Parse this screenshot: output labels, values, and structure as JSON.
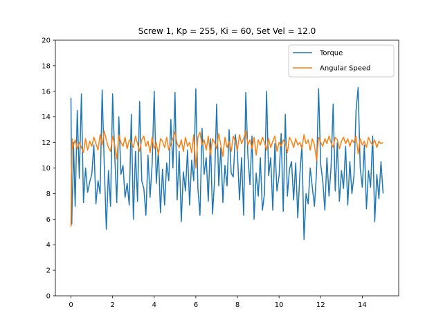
{
  "chart_data": {
    "type": "line",
    "title": "Screw 1, Kp = 255, Ki = 60, Set Vel = 12.0",
    "xlabel": "",
    "ylabel": "",
    "xlim": [
      -0.75,
      15.75
    ],
    "ylim": [
      0,
      20
    ],
    "xticks": [
      0,
      2,
      4,
      6,
      8,
      10,
      12,
      14
    ],
    "yticks": [
      0,
      2,
      4,
      6,
      8,
      10,
      12,
      14,
      16,
      18,
      20
    ],
    "grid": false,
    "legend_position": "upper right",
    "series": [
      {
        "name": "Torque",
        "color": "#1f77b4",
        "x": [
          0,
          0.02,
          0.04,
          0.06,
          0.08,
          0.12,
          0.2,
          0.3,
          0.4,
          0.5,
          0.6,
          0.7,
          0.8,
          0.9,
          1.0,
          1.1,
          1.2,
          1.3,
          1.4,
          1.5,
          1.6,
          1.7,
          1.8,
          1.9,
          2.0,
          2.1,
          2.2,
          2.3,
          2.4,
          2.5,
          2.6,
          2.7,
          2.8,
          2.9,
          3.0,
          3.1,
          3.2,
          3.3,
          3.4,
          3.5,
          3.6,
          3.7,
          3.8,
          3.9,
          4.0,
          4.1,
          4.2,
          4.3,
          4.4,
          4.5,
          4.6,
          4.7,
          4.8,
          4.9,
          5.0,
          5.1,
          5.2,
          5.3,
          5.4,
          5.5,
          5.6,
          5.7,
          5.8,
          5.9,
          6.0,
          6.1,
          6.2,
          6.3,
          6.4,
          6.5,
          6.6,
          6.7,
          6.8,
          6.9,
          7.0,
          7.1,
          7.2,
          7.3,
          7.4,
          7.5,
          7.6,
          7.7,
          7.8,
          7.9,
          8.0,
          8.1,
          8.2,
          8.3,
          8.4,
          8.5,
          8.6,
          8.7,
          8.8,
          8.9,
          9.0,
          9.1,
          9.2,
          9.3,
          9.4,
          9.5,
          9.6,
          9.7,
          9.8,
          9.9,
          10.0,
          10.1,
          10.2,
          10.3,
          10.4,
          10.5,
          10.6,
          10.7,
          10.8,
          10.9,
          11.0,
          11.1,
          11.2,
          11.3,
          11.4,
          11.5,
          11.6,
          11.7,
          11.8,
          11.9,
          12.0,
          12.1,
          12.2,
          12.3,
          12.4,
          12.5,
          12.6,
          12.7,
          12.8,
          12.9,
          13.0,
          13.1,
          13.2,
          13.3,
          13.4,
          13.5,
          13.6,
          13.7,
          13.8,
          13.9,
          14.0,
          14.1,
          14.2,
          14.3,
          14.4,
          14.5,
          14.6,
          14.7,
          14.8,
          14.9,
          15.0
        ],
        "y": [
          15.5,
          11.0,
          5.6,
          7.5,
          8.2,
          12.0,
          7.0,
          14.5,
          9.2,
          15.8,
          7.3,
          10.0,
          8.1,
          8.9,
          9.5,
          11.8,
          7.2,
          9.0,
          8.0,
          16.1,
          10.3,
          5.2,
          9.8,
          7.0,
          15.8,
          11.0,
          7.3,
          14.0,
          9.5,
          10.2,
          7.7,
          8.8,
          7.1,
          14.2,
          6.0,
          11.3,
          7.4,
          15.2,
          9.0,
          8.4,
          6.3,
          11.0,
          7.7,
          10.3,
          16.0,
          8.8,
          11.4,
          6.5,
          9.9,
          7.1,
          10.4,
          9.0,
          13.8,
          10.0,
          15.9,
          7.5,
          11.3,
          5.8,
          9.7,
          8.2,
          11.4,
          7.1,
          10.6,
          9.0,
          16.2,
          8.4,
          6.3,
          13.1,
          9.5,
          10.8,
          7.4,
          12.3,
          6.4,
          9.0,
          15.0,
          8.6,
          11.6,
          7.3,
          10.2,
          8.6,
          13.0,
          9.6,
          9.3,
          12.6,
          11.2,
          7.5,
          10.8,
          6.3,
          15.9,
          11.0,
          8.7,
          12.5,
          6.0,
          9.6,
          7.8,
          10.8,
          6.7,
          8.0,
          16.0,
          9.4,
          10.8,
          6.7,
          11.9,
          8.2,
          9.4,
          12.7,
          6.6,
          14.2,
          7.8,
          9.9,
          10.5,
          7.5,
          10.4,
          6.1,
          9.5,
          11.8,
          4.4,
          8.0,
          7.2,
          10.0,
          8.5,
          7.0,
          9.7,
          16.2,
          10.3,
          9.0,
          6.7,
          10.8,
          7.8,
          10.1,
          15.0,
          8.2,
          12.0,
          7.4,
          9.8,
          8.4,
          11.7,
          7.1,
          10.5,
          8.0,
          9.4,
          14.5,
          16.3,
          10.0,
          8.5,
          11.8,
          6.8,
          9.8,
          8.5,
          12.5,
          5.8,
          9.5,
          7.6,
          10.5,
          8.0
        ]
      },
      {
        "name": "Angular Speed",
        "color": "#ff7f0e",
        "x": [
          0,
          0.02,
          0.04,
          0.06,
          0.08,
          0.12,
          0.2,
          0.3,
          0.4,
          0.5,
          0.6,
          0.7,
          0.8,
          0.9,
          1.0,
          1.1,
          1.2,
          1.3,
          1.4,
          1.5,
          1.6,
          1.7,
          1.8,
          1.9,
          2.0,
          2.1,
          2.2,
          2.3,
          2.4,
          2.5,
          2.6,
          2.7,
          2.8,
          2.9,
          3.0,
          3.1,
          3.2,
          3.3,
          3.4,
          3.5,
          3.6,
          3.7,
          3.8,
          3.9,
          4.0,
          4.1,
          4.2,
          4.3,
          4.4,
          4.5,
          4.6,
          4.7,
          4.8,
          4.9,
          5.0,
          5.1,
          5.2,
          5.3,
          5.4,
          5.5,
          5.6,
          5.7,
          5.8,
          5.9,
          6.0,
          6.1,
          6.2,
          6.3,
          6.4,
          6.5,
          6.6,
          6.7,
          6.8,
          6.9,
          7.0,
          7.1,
          7.2,
          7.3,
          7.4,
          7.5,
          7.6,
          7.7,
          7.8,
          7.9,
          8.0,
          8.1,
          8.2,
          8.3,
          8.4,
          8.5,
          8.6,
          8.7,
          8.8,
          8.9,
          9.0,
          9.1,
          9.2,
          9.3,
          9.4,
          9.5,
          9.6,
          9.7,
          9.8,
          9.9,
          10.0,
          10.1,
          10.2,
          10.3,
          10.4,
          10.5,
          10.6,
          10.7,
          10.8,
          10.9,
          11.0,
          11.1,
          11.2,
          11.3,
          11.4,
          11.5,
          11.6,
          11.7,
          11.8,
          11.9,
          12.0,
          12.1,
          12.2,
          12.3,
          12.4,
          12.5,
          12.6,
          12.7,
          12.8,
          12.9,
          13.0,
          13.1,
          13.2,
          13.3,
          13.4,
          13.5,
          13.6,
          13.7,
          13.8,
          13.9,
          14.0,
          14.1,
          14.2,
          14.3,
          14.4,
          14.5,
          14.6,
          14.7,
          14.8,
          14.9,
          15.0
        ],
        "y": [
          5.4,
          9.5,
          10.5,
          12.3,
          11.5,
          11.8,
          12.2,
          11.5,
          12.0,
          11.6,
          11.2,
          12.3,
          11.4,
          12.1,
          11.7,
          12.4,
          11.9,
          11.4,
          12.6,
          11.8,
          12.9,
          12.2,
          11.6,
          11.3,
          12.5,
          11.8,
          10.7,
          12.6,
          12.0,
          11.7,
          12.4,
          11.5,
          12.2,
          12.0,
          11.6,
          12.5,
          11.9,
          11.3,
          12.2,
          12.5,
          11.7,
          12.1,
          11.2,
          12.4,
          11.5,
          12.0,
          11.0,
          12.3,
          12.1,
          11.6,
          12.4,
          11.4,
          11.8,
          12.3,
          12.8,
          11.9,
          11.6,
          12.2,
          11.3,
          12.4,
          11.7,
          12.0,
          11.2,
          12.6,
          10.0,
          12.4,
          12.8,
          11.8,
          12.2,
          11.4,
          12.5,
          11.0,
          12.3,
          12.0,
          11.5,
          12.7,
          11.8,
          10.9,
          12.4,
          11.6,
          12.1,
          11.3,
          12.5,
          12.1,
          11.4,
          12.6,
          11.9,
          12.3,
          12.9,
          11.8,
          12.2,
          11.5,
          12.4,
          11.0,
          12.2,
          11.8,
          12.4,
          12.0,
          11.4,
          12.3,
          11.6,
          12.1,
          12.5,
          11.3,
          12.0,
          11.7,
          12.2,
          11.9,
          11.2,
          12.4,
          12.1,
          11.6,
          12.3,
          11.8,
          12.0,
          11.5,
          12.6,
          11.9,
          12.2,
          11.4,
          12.3,
          11.8,
          10.6,
          12.4,
          12.0,
          11.7,
          12.3,
          11.9,
          12.5,
          12.0,
          11.6,
          12.4,
          12.2,
          11.5,
          12.1,
          12.4,
          11.9,
          12.3,
          11.7,
          12.2,
          12.0,
          12.5,
          11.1,
          12.3,
          11.8,
          12.1,
          11.6,
          12.4,
          12.0,
          11.8,
          12.2,
          11.6,
          12.1,
          11.9,
          12.0
        ]
      }
    ]
  }
}
